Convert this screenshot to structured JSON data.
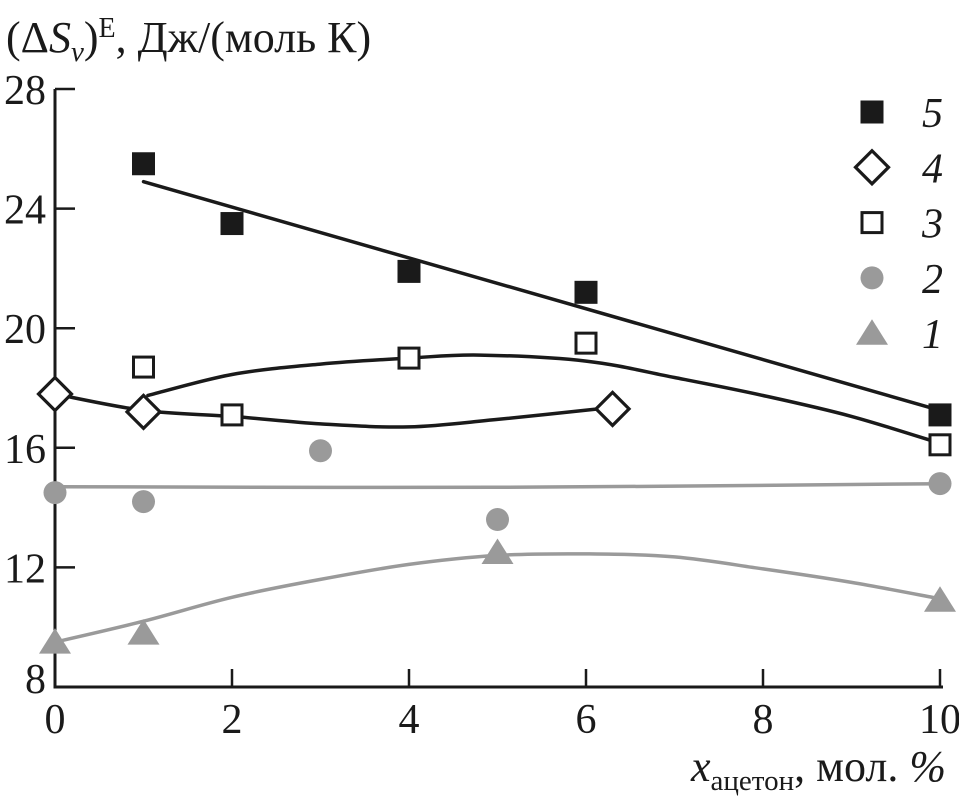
{
  "figure": {
    "background": "#ffffff",
    "ink": "#1a1a1a",
    "gray": "#9a9a9a"
  },
  "chart_data": {
    "type": "scatter",
    "title_parts": {
      "open": "(Δ",
      "sym": "S",
      "sub": "ν",
      "close": ")",
      "sup": "E",
      "unit": ", Дж/(моль К)"
    },
    "xlabel_parts": {
      "sym": "x",
      "sub": "ацетон",
      "mid": ", мол. ",
      "pct": "%"
    },
    "x_axis": {
      "min": 0,
      "max": 10,
      "ticks": [
        0,
        2,
        4,
        6,
        8,
        10
      ]
    },
    "y_axis": {
      "min": 8,
      "max": 28,
      "ticks": [
        8,
        12,
        16,
        20,
        24,
        28
      ]
    },
    "grid": false,
    "legend": {
      "position": "top-right",
      "items": [
        {
          "label": "5",
          "marker": "filled-square"
        },
        {
          "label": "4",
          "marker": "open-diamond"
        },
        {
          "label": "3",
          "marker": "open-square"
        },
        {
          "label": "2",
          "marker": "filled-circle"
        },
        {
          "label": "1",
          "marker": "filled-triangle"
        }
      ]
    },
    "series": [
      {
        "name": "1",
        "marker": "filled-triangle",
        "color": "#9a9a9a",
        "points": [
          [
            0,
            9.5
          ],
          [
            1,
            9.8
          ],
          [
            5,
            12.5
          ],
          [
            10,
            10.9
          ]
        ],
        "trend": [
          [
            0,
            9.5
          ],
          [
            1,
            10.2
          ],
          [
            2,
            11.0
          ],
          [
            3,
            11.6
          ],
          [
            4,
            12.1
          ],
          [
            5,
            12.4
          ],
          [
            6,
            12.45
          ],
          [
            7,
            12.35
          ],
          [
            8,
            11.95
          ],
          [
            9,
            11.5
          ],
          [
            10,
            10.95
          ]
        ]
      },
      {
        "name": "2",
        "marker": "filled-circle",
        "color": "#9a9a9a",
        "points": [
          [
            0,
            14.5
          ],
          [
            1,
            14.2
          ],
          [
            3,
            15.9
          ],
          [
            5,
            13.6
          ],
          [
            10,
            14.8
          ]
        ],
        "trend": [
          [
            0,
            14.7
          ],
          [
            5,
            14.68
          ],
          [
            10,
            14.8
          ]
        ]
      },
      {
        "name": "4",
        "marker": "open-diamond",
        "color": "#1a1a1a",
        "points": [
          [
            0,
            17.8
          ],
          [
            1,
            17.2
          ],
          [
            6.3,
            17.3
          ]
        ],
        "trend": [
          [
            0,
            17.8
          ],
          [
            1,
            17.25
          ],
          [
            2,
            17.05
          ],
          [
            3,
            16.8
          ],
          [
            4,
            16.7
          ],
          [
            5,
            16.95
          ],
          [
            6.3,
            17.35
          ]
        ]
      },
      {
        "name": "3",
        "marker": "open-square",
        "color": "#1a1a1a",
        "points": [
          [
            1,
            18.7
          ],
          [
            2,
            17.1
          ],
          [
            4,
            19.0
          ],
          [
            6,
            19.5
          ],
          [
            10,
            16.1
          ]
        ],
        "trend": [
          [
            1.05,
            17.75
          ],
          [
            2,
            18.45
          ],
          [
            3,
            18.8
          ],
          [
            4,
            19.0
          ],
          [
            4.8,
            19.1
          ],
          [
            6,
            18.9
          ],
          [
            7,
            18.35
          ],
          [
            8,
            17.75
          ],
          [
            9,
            17.05
          ],
          [
            10,
            16.15
          ]
        ]
      },
      {
        "name": "5",
        "marker": "filled-square",
        "color": "#1a1a1a",
        "points": [
          [
            1,
            25.5
          ],
          [
            2,
            23.5
          ],
          [
            4,
            21.9
          ],
          [
            6,
            21.2
          ],
          [
            10,
            17.1
          ]
        ],
        "trend": [
          [
            1,
            24.9
          ],
          [
            10,
            17.25
          ]
        ]
      }
    ]
  }
}
